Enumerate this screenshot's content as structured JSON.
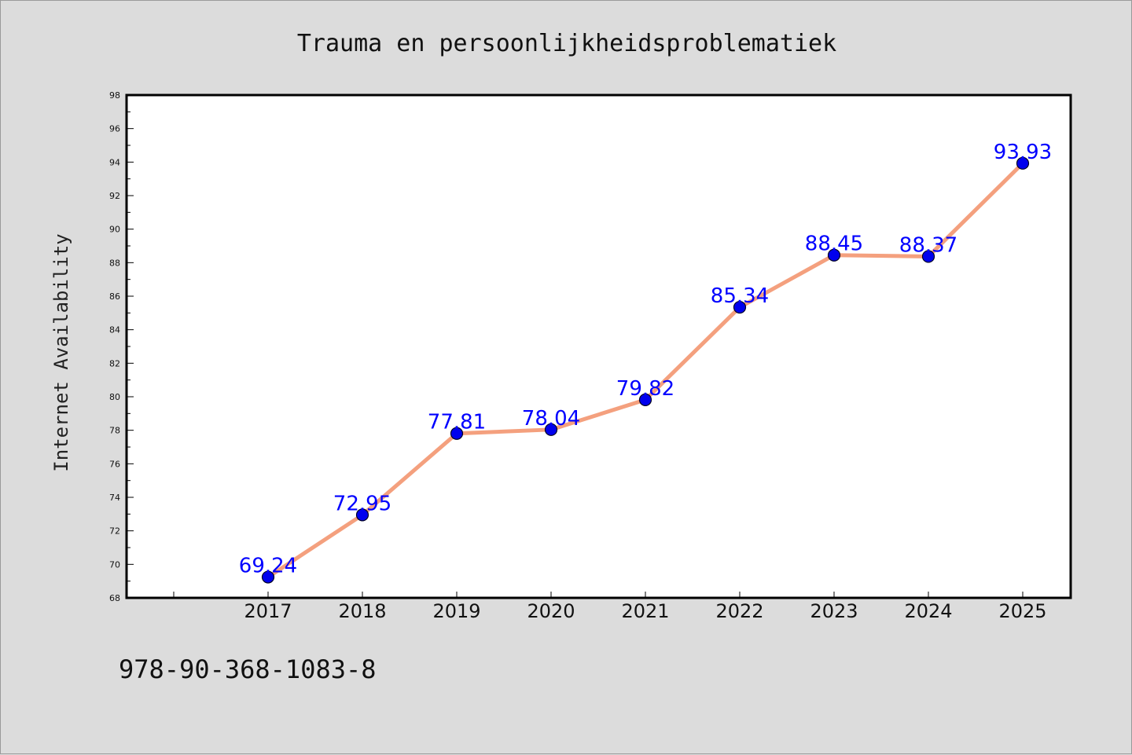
{
  "chart_data": {
    "type": "line",
    "title": "Trauma en persoonlijkheidsproblematiek",
    "xlabel": "",
    "ylabel": "Internet Availability",
    "categories": [
      "2017",
      "2018",
      "2019",
      "2020",
      "2021",
      "2022",
      "2023",
      "2024",
      "2025"
    ],
    "values": [
      69.24,
      72.95,
      77.81,
      78.04,
      79.82,
      85.34,
      88.45,
      88.37,
      93.93
    ],
    "data_labels": [
      "69.24",
      "72.95",
      "77.81",
      "78.04",
      "79.82",
      "85.34",
      "88.45",
      "88.37",
      "93.93"
    ],
    "ylim": [
      68,
      98
    ],
    "yticks": [
      "68",
      "70",
      "72",
      "74",
      "76",
      "78",
      "80",
      "82",
      "84",
      "86",
      "88",
      "90",
      "92",
      "94",
      "96",
      "98"
    ],
    "grid": false,
    "legend": "none",
    "colors": {
      "line": "#f4a07e",
      "marker": "#0000ee",
      "data_label": "#0000ff",
      "plot_background": "#ffffff",
      "page_background": "#dcdcdc"
    }
  },
  "footer": {
    "isbn": "978-90-368-1083-8"
  }
}
